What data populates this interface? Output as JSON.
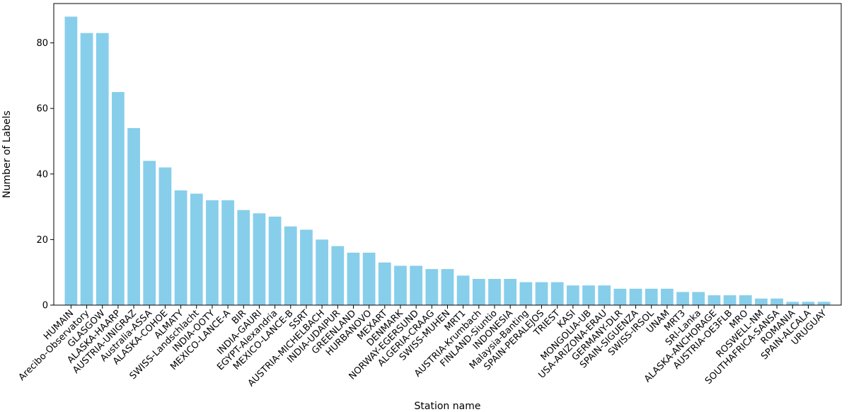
{
  "chart_data": {
    "type": "bar",
    "title": "",
    "xlabel": "Station name",
    "ylabel": "Number of Labels",
    "ylim": [
      0,
      92
    ],
    "yticks": [
      0,
      20,
      40,
      60,
      80
    ],
    "grid": false,
    "bar_color": "#87ceeb",
    "categories": [
      "HUMAIN",
      "Arecibo-Observatory",
      "GLASGOW",
      "ALASKA-HAARP",
      "AUSTRIA-UNIGRAZ",
      "Australia-ASSA",
      "ALASKA-COHOE",
      "ALMATY",
      "SWISS-Landschlacht",
      "INDIA-OOTY",
      "MEXICO-LANCE-A",
      "BIR",
      "INDIA-GAURI",
      "EGYPT-Alexandria",
      "MEXICO-LANCE-B",
      "SSRT",
      "AUSTRIA-MICHELBACH",
      "INDIA-UDAIPUR",
      "GREENLAND",
      "HURBANOVO",
      "MEXART",
      "DENMARK",
      "NORWAY-EGERSUND",
      "ALGERIA-CRAAG",
      "SWISS-MUHEN",
      "MRT1",
      "AUSTRIA-Krumbach",
      "FINLAND-Siuntio",
      "INDONESIA",
      "Malaysia-Banting",
      "SPAIN-PERALEJOS",
      "TRIEST",
      "KASI",
      "MONGOLIA-UB",
      "USA-ARIZONA-ERAU",
      "GERMANY-DLR",
      "SPAIN-SIGUENZA",
      "SWISS-IRSOL",
      "UNAM",
      "MRT3",
      "SRI-Lanka",
      "ALASKA-ANCHORAGE",
      "AUSTRIA-OE3FLB",
      "MRO",
      "ROSWELL-NM",
      "SOUTHAFRICA-SANSA",
      "ROMANIA",
      "SPAIN-ALCALA",
      "URUGUAY"
    ],
    "values": [
      88,
      83,
      83,
      65,
      54,
      44,
      42,
      35,
      34,
      32,
      32,
      29,
      28,
      27,
      24,
      23,
      20,
      18,
      16,
      16,
      13,
      12,
      12,
      11,
      11,
      9,
      8,
      8,
      8,
      7,
      7,
      7,
      6,
      6,
      6,
      5,
      5,
      5,
      5,
      4,
      4,
      3,
      3,
      3,
      2,
      2,
      1,
      1,
      1
    ]
  }
}
